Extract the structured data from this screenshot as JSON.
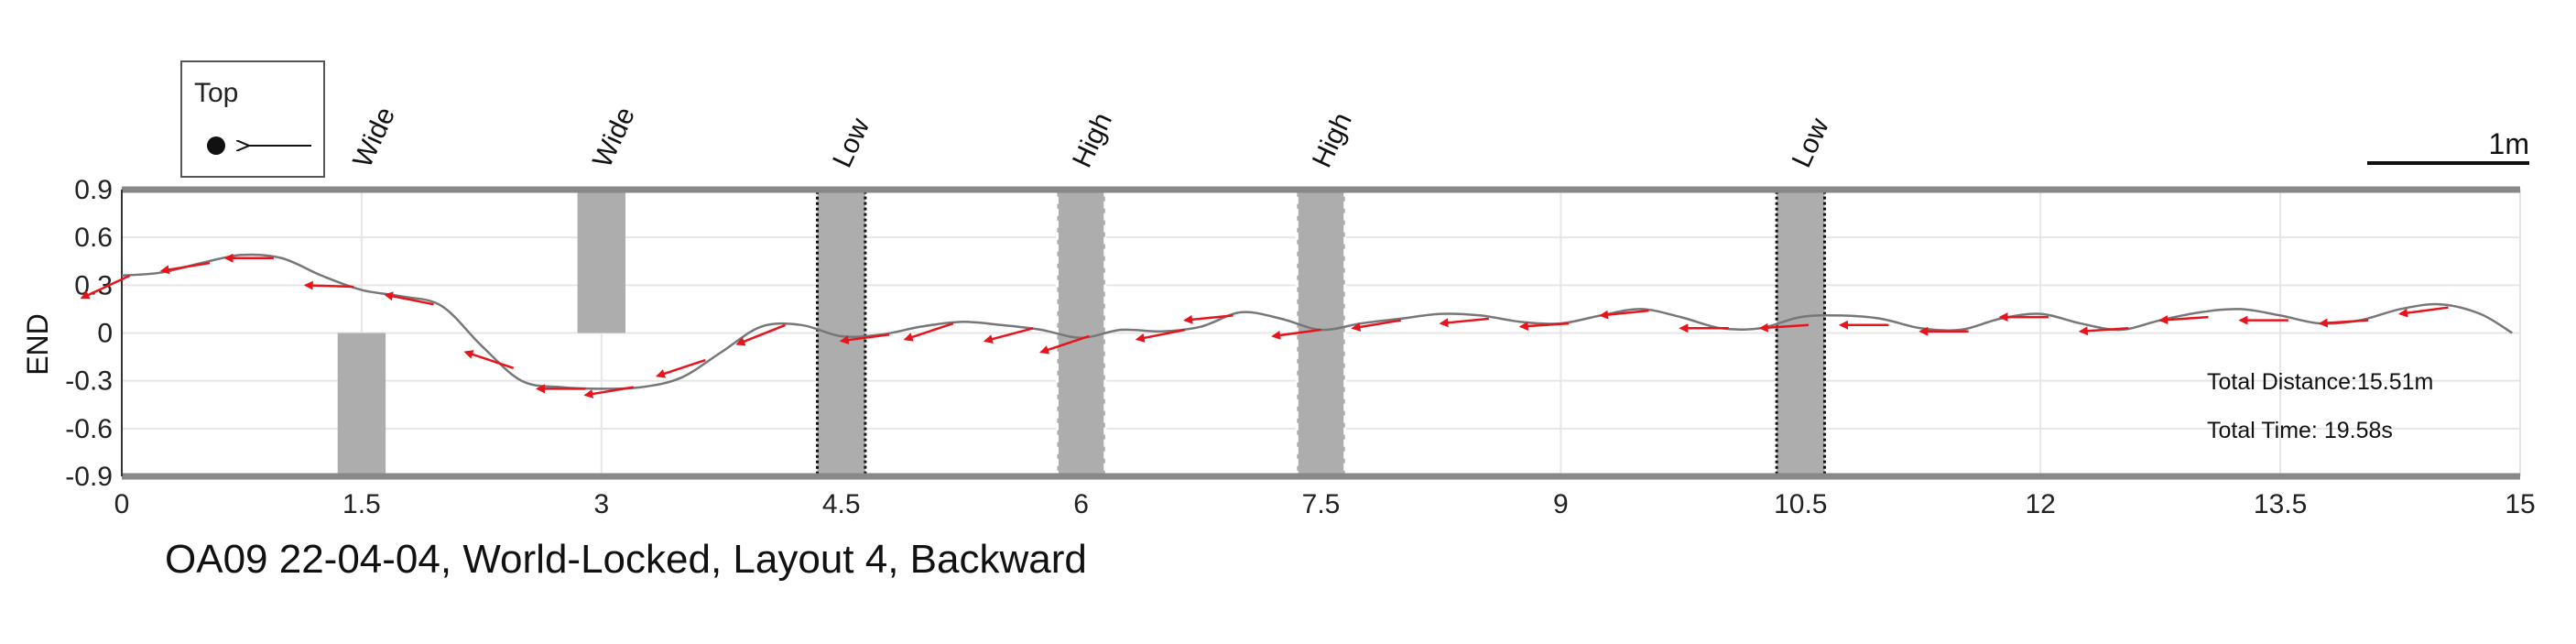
{
  "chart_data": {
    "type": "line",
    "title": "OA09 22-04-04, World-Locked, Layout 4, Backward",
    "xlabel": "",
    "ylabel": "END",
    "xlim": [
      0,
      15
    ],
    "ylim": [
      -0.9,
      0.9
    ],
    "x_ticks": [
      0,
      1.5,
      3,
      4.5,
      6,
      7.5,
      9,
      10.5,
      12,
      13.5,
      15
    ],
    "x_tick_labels": [
      "0",
      "1.5",
      "3",
      "4.5",
      "6",
      "7.5",
      "9",
      "10.5",
      "12",
      "13.5",
      "15"
    ],
    "y_ticks": [
      0.9,
      0.6,
      0.3,
      0,
      -0.3,
      -0.6,
      -0.9
    ],
    "y_tick_labels": [
      "0.9",
      "0.6",
      "0.3",
      "0",
      "-0.3",
      "-0.6",
      "-0.9"
    ],
    "grid": true,
    "legend": {
      "title": "Top",
      "position": "top-left"
    },
    "scale_bar": {
      "label": "1m",
      "length": 1
    },
    "stats": [
      {
        "text": "Total Distance:15.51m"
      },
      {
        "text": "Total Time: 19.58s"
      }
    ],
    "obstacles": [
      {
        "type": "Wide",
        "x_range": [
          1.35,
          1.65
        ],
        "y_range": [
          -0.9,
          0
        ],
        "style": "plain"
      },
      {
        "type": "Wide",
        "x_range": [
          2.85,
          3.15
        ],
        "y_range": [
          0,
          0.9
        ],
        "style": "plain"
      },
      {
        "type": "Low",
        "x_range": [
          4.35,
          4.65
        ],
        "y_range": [
          -0.9,
          0.9
        ],
        "style": "dotted-dark"
      },
      {
        "type": "High",
        "x_range": [
          5.85,
          6.15
        ],
        "y_range": [
          -0.9,
          0.9
        ],
        "style": "dashed-white"
      },
      {
        "type": "High",
        "x_range": [
          7.35,
          7.65
        ],
        "y_range": [
          -0.9,
          0.9
        ],
        "style": "dashed-white"
      },
      {
        "type": "Low",
        "x_range": [
          10.35,
          10.65
        ],
        "y_range": [
          -0.9,
          0.9
        ],
        "style": "dotted-dark"
      }
    ],
    "series": [
      {
        "x": [
          0,
          0.25,
          0.5,
          0.75,
          1.0,
          1.25,
          1.5,
          1.75,
          2.0,
          2.25,
          2.5,
          2.75,
          3.0,
          3.25,
          3.5,
          3.75,
          4.0,
          4.25,
          4.5,
          4.75,
          5.0,
          5.25,
          5.5,
          5.75,
          6.0,
          6.25,
          6.5,
          6.75,
          7.0,
          7.25,
          7.5,
          7.75,
          8.0,
          8.25,
          8.5,
          8.75,
          9.0,
          9.25,
          9.5,
          9.75,
          10.0,
          10.25,
          10.5,
          10.75,
          11.0,
          11.25,
          11.5,
          11.75,
          12.0,
          12.25,
          12.5,
          12.75,
          13.0,
          13.25,
          13.5,
          13.75,
          14.0,
          14.25,
          14.5,
          14.75,
          14.95
        ],
        "y": [
          0.36,
          0.38,
          0.44,
          0.49,
          0.47,
          0.36,
          0.27,
          0.23,
          0.17,
          -0.08,
          -0.3,
          -0.34,
          -0.35,
          -0.34,
          -0.28,
          -0.12,
          0.04,
          0.05,
          -0.02,
          -0.01,
          0.04,
          0.07,
          0.05,
          0.02,
          -0.03,
          0.02,
          0.01,
          0.04,
          0.13,
          0.09,
          0.02,
          0.06,
          0.09,
          0.12,
          0.11,
          0.07,
          0.06,
          0.11,
          0.15,
          0.1,
          0.03,
          0.03,
          0.1,
          0.11,
          0.09,
          0.03,
          0.02,
          0.09,
          0.12,
          0.06,
          0.02,
          0.08,
          0.13,
          0.15,
          0.11,
          0.06,
          0.08,
          0.15,
          0.18,
          0.12,
          0.0
        ]
      }
    ],
    "heading_arrows": [
      {
        "x": 0.05,
        "y": 0.36,
        "dx": -0.3,
        "dy": -0.14
      },
      {
        "x": 0.55,
        "y": 0.44,
        "dx": -0.3,
        "dy": -0.05
      },
      {
        "x": 0.95,
        "y": 0.47,
        "dx": -0.3,
        "dy": 0.0
      },
      {
        "x": 1.45,
        "y": 0.29,
        "dx": -0.3,
        "dy": 0.01
      },
      {
        "x": 1.95,
        "y": 0.18,
        "dx": -0.3,
        "dy": 0.06
      },
      {
        "x": 2.45,
        "y": -0.22,
        "dx": -0.3,
        "dy": 0.1
      },
      {
        "x": 2.9,
        "y": -0.35,
        "dx": -0.3,
        "dy": 0.0
      },
      {
        "x": 3.2,
        "y": -0.34,
        "dx": -0.3,
        "dy": -0.05
      },
      {
        "x": 3.65,
        "y": -0.17,
        "dx": -0.3,
        "dy": -0.1
      },
      {
        "x": 4.15,
        "y": 0.05,
        "dx": -0.3,
        "dy": -0.12
      },
      {
        "x": 4.8,
        "y": -0.01,
        "dx": -0.3,
        "dy": -0.04
      },
      {
        "x": 5.2,
        "y": 0.06,
        "dx": -0.3,
        "dy": -0.1
      },
      {
        "x": 5.7,
        "y": 0.03,
        "dx": -0.3,
        "dy": -0.08
      },
      {
        "x": 6.05,
        "y": -0.02,
        "dx": -0.3,
        "dy": -0.1
      },
      {
        "x": 6.65,
        "y": 0.02,
        "dx": -0.3,
        "dy": -0.06
      },
      {
        "x": 6.95,
        "y": 0.11,
        "dx": -0.3,
        "dy": -0.03
      },
      {
        "x": 7.5,
        "y": 0.02,
        "dx": -0.3,
        "dy": -0.04
      },
      {
        "x": 8.0,
        "y": 0.08,
        "dx": -0.3,
        "dy": -0.05
      },
      {
        "x": 8.55,
        "y": 0.09,
        "dx": -0.3,
        "dy": -0.03
      },
      {
        "x": 9.05,
        "y": 0.06,
        "dx": -0.3,
        "dy": -0.02
      },
      {
        "x": 9.55,
        "y": 0.14,
        "dx": -0.3,
        "dy": -0.03
      },
      {
        "x": 10.05,
        "y": 0.03,
        "dx": -0.3,
        "dy": 0.0
      },
      {
        "x": 10.55,
        "y": 0.05,
        "dx": -0.3,
        "dy": -0.02
      },
      {
        "x": 11.05,
        "y": 0.05,
        "dx": -0.3,
        "dy": 0.0
      },
      {
        "x": 11.55,
        "y": 0.01,
        "dx": -0.3,
        "dy": 0.0
      },
      {
        "x": 12.05,
        "y": 0.1,
        "dx": -0.3,
        "dy": 0.0
      },
      {
        "x": 12.55,
        "y": 0.03,
        "dx": -0.3,
        "dy": -0.02
      },
      {
        "x": 13.05,
        "y": 0.1,
        "dx": -0.3,
        "dy": -0.02
      },
      {
        "x": 13.55,
        "y": 0.08,
        "dx": -0.3,
        "dy": 0.0
      },
      {
        "x": 14.05,
        "y": 0.08,
        "dx": -0.3,
        "dy": -0.02
      },
      {
        "x": 14.55,
        "y": 0.16,
        "dx": -0.3,
        "dy": -0.04
      }
    ],
    "colors": {
      "path": "#777777",
      "arrows": "#e8141c",
      "obstacle": "#adadad",
      "boundary": "#888888",
      "grid": "#e6e6e6"
    }
  }
}
